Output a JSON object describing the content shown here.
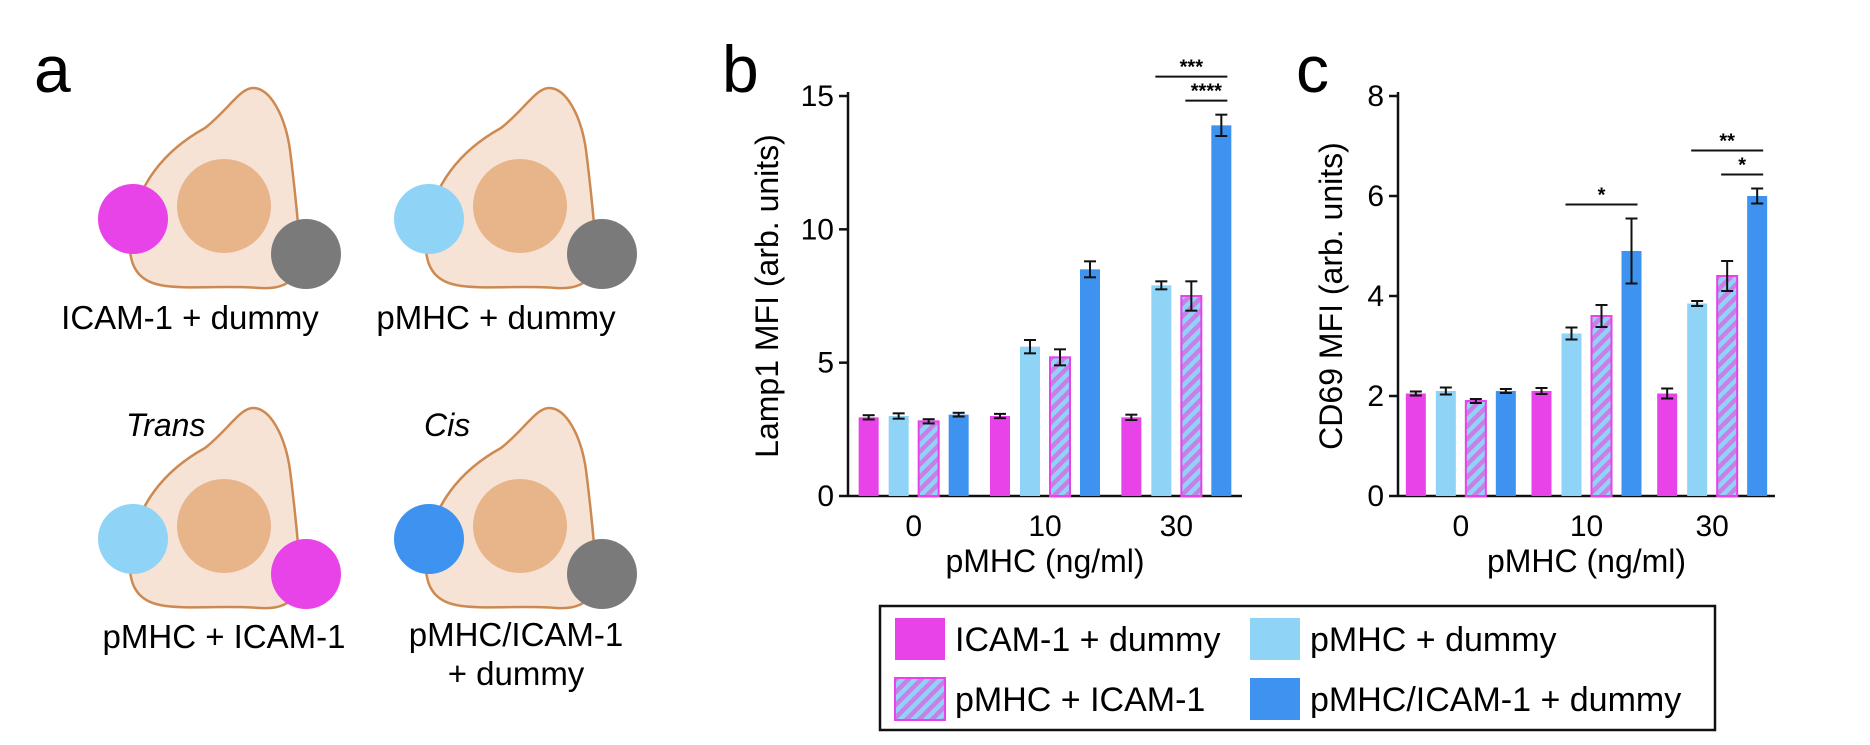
{
  "panel_labels": {
    "a": "a",
    "b": "b",
    "c": "c"
  },
  "colors": {
    "icam_dummy": "#e843e8",
    "pmhc_dummy": "#8fd3f7",
    "pmhc_icam": "#c97ee8",
    "pmhc_icam_stripe": "#8fd3f7",
    "pmhc_icam_dummy": "#3d93ef",
    "dummy": "#7a7a7a",
    "cell_fill": "#f7e3d5",
    "cell_stroke": "#cc8a52",
    "nucleus": "#e8b58a"
  },
  "panel_a": {
    "cells": [
      {
        "label": "ICAM-1 + dummy",
        "italic": "",
        "left_bead": "icam_dummy",
        "right_bead": "dummy"
      },
      {
        "label": "pMHC + dummy",
        "italic": "",
        "left_bead": "pmhc_dummy",
        "right_bead": "dummy"
      },
      {
        "label": "pMHC + ICAM-1",
        "italic": "Trans",
        "left_bead": "pmhc_dummy",
        "right_bead": "icam_dummy"
      },
      {
        "label": "pMHC/ICAM-1",
        "label2": "+ dummy",
        "italic": "Cis",
        "left_bead": "pmhc_icam_dummy",
        "right_bead": "dummy"
      }
    ]
  },
  "chart_data": [
    {
      "type": "bar",
      "panel": "b",
      "categories": [
        "0",
        "10",
        "30"
      ],
      "xlabel": "pMHC (ng/ml)",
      "ylabel": "Lamp1 MFI (arb. units)",
      "ylim": [
        0,
        15
      ],
      "yticks": [
        0,
        5,
        10,
        15
      ],
      "series": [
        {
          "name": "ICAM-1 + dummy",
          "color_key": "icam_dummy",
          "values": [
            2.95,
            3.0,
            2.95
          ],
          "errors": [
            0.08,
            0.08,
            0.1
          ]
        },
        {
          "name": "pMHC + dummy",
          "color_key": "pmhc_dummy",
          "values": [
            3.0,
            5.6,
            7.9
          ],
          "errors": [
            0.1,
            0.25,
            0.15
          ]
        },
        {
          "name": "pMHC + ICAM-1",
          "color_key": "pmhc_icam",
          "values": [
            2.8,
            5.2,
            7.5
          ],
          "errors": [
            0.08,
            0.3,
            0.55
          ]
        },
        {
          "name": "pMHC/ICAM-1 + dummy",
          "color_key": "pmhc_icam_dummy",
          "values": [
            3.05,
            8.5,
            13.9
          ],
          "errors": [
            0.07,
            0.3,
            0.4
          ]
        }
      ],
      "significance": [
        {
          "category": 2,
          "from_series": 1,
          "to_series": 3,
          "label": "***",
          "level": 2
        },
        {
          "category": 2,
          "from_series": 2,
          "to_series": 3,
          "label": "****",
          "level": 1
        }
      ]
    },
    {
      "type": "bar",
      "panel": "c",
      "categories": [
        "0",
        "10",
        "30"
      ],
      "xlabel": "pMHC (ng/ml)",
      "ylabel": "CD69 MFI (arb. units)",
      "ylim": [
        0,
        8
      ],
      "yticks": [
        0,
        2,
        4,
        6,
        8
      ],
      "series": [
        {
          "name": "ICAM-1 + dummy",
          "color_key": "icam_dummy",
          "values": [
            2.05,
            2.1,
            2.05
          ],
          "errors": [
            0.04,
            0.06,
            0.1
          ]
        },
        {
          "name": "pMHC + dummy",
          "color_key": "pmhc_dummy",
          "values": [
            2.1,
            3.25,
            3.85
          ],
          "errors": [
            0.07,
            0.12,
            0.05
          ]
        },
        {
          "name": "pMHC + ICAM-1",
          "color_key": "pmhc_icam",
          "values": [
            1.9,
            3.6,
            4.4
          ],
          "errors": [
            0.04,
            0.22,
            0.3
          ]
        },
        {
          "name": "pMHC/ICAM-1 + dummy",
          "color_key": "pmhc_icam_dummy",
          "values": [
            2.1,
            4.9,
            6.0
          ],
          "errors": [
            0.04,
            0.65,
            0.15
          ]
        }
      ],
      "significance": [
        {
          "category": 1,
          "from_series": 1,
          "to_series": 3,
          "label": "*",
          "level": 1
        },
        {
          "category": 2,
          "from_series": 1,
          "to_series": 3,
          "label": "**",
          "level": 2
        },
        {
          "category": 2,
          "from_series": 2,
          "to_series": 3,
          "label": "*",
          "level": 1
        }
      ]
    }
  ],
  "legend": {
    "items": [
      {
        "label": "ICAM-1 + dummy",
        "color_key": "icam_dummy",
        "hatched": false
      },
      {
        "label": "pMHC + dummy",
        "color_key": "pmhc_dummy",
        "hatched": false
      },
      {
        "label": "pMHC + ICAM-1",
        "color_key": "pmhc_icam",
        "hatched": true
      },
      {
        "label": "pMHC/ICAM-1 + dummy",
        "color_key": "pmhc_icam_dummy",
        "hatched": false
      }
    ]
  }
}
